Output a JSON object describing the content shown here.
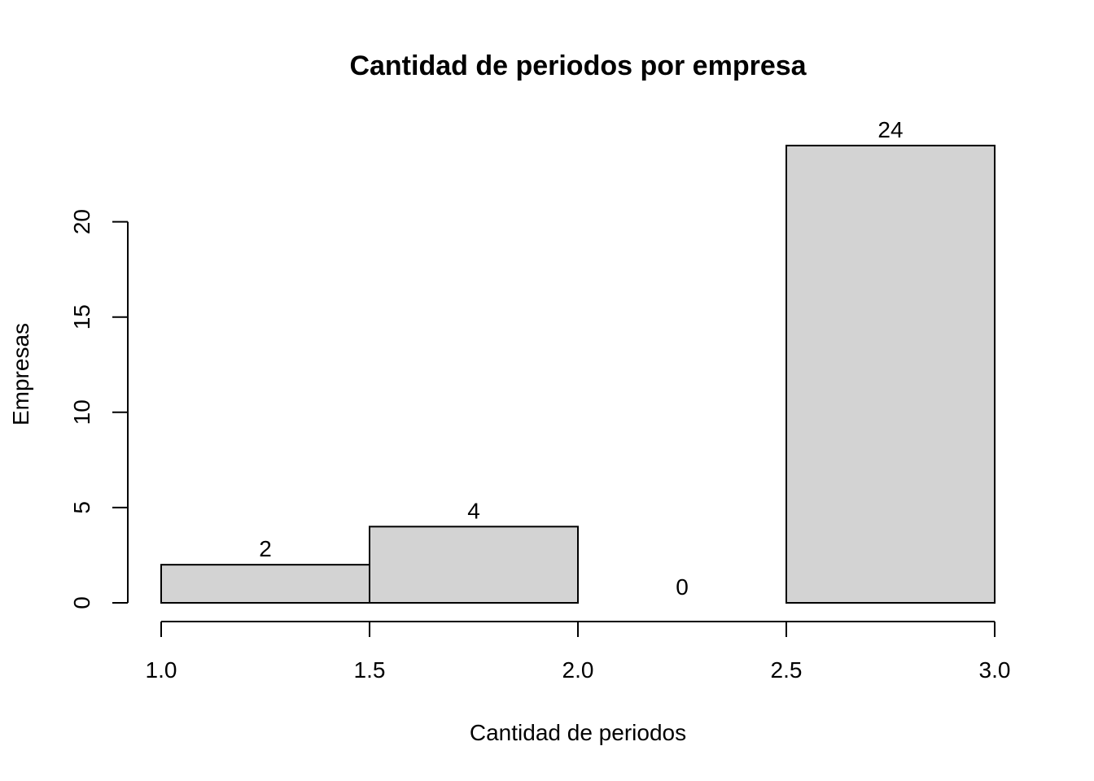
{
  "chart_data": {
    "type": "bar",
    "subtype": "histogram",
    "title": "Cantidad de periodos por empresa",
    "xlabel": "Cantidad de periodos",
    "ylabel": "Empresas",
    "bins": [
      {
        "x0": 1.0,
        "x1": 1.5,
        "count": 2,
        "label": "2"
      },
      {
        "x0": 1.5,
        "x1": 2.0,
        "count": 4,
        "label": "4"
      },
      {
        "x0": 2.0,
        "x1": 2.5,
        "count": 0,
        "label": "0"
      },
      {
        "x0": 2.5,
        "x1": 3.0,
        "count": 24,
        "label": "24"
      }
    ],
    "xlim": [
      1.0,
      3.0
    ],
    "ylim": [
      0,
      24
    ],
    "x_ticks": [
      1.0,
      1.5,
      2.0,
      2.5,
      3.0
    ],
    "x_tick_labels": [
      "1.0",
      "1.5",
      "2.0",
      "2.5",
      "3.0"
    ],
    "y_ticks": [
      0,
      5,
      10,
      15,
      20
    ],
    "y_tick_labels": [
      "0",
      "5",
      "10",
      "15",
      "20"
    ],
    "bar_color": "#d3d3d3",
    "border_color": "#000000",
    "grid": false
  }
}
